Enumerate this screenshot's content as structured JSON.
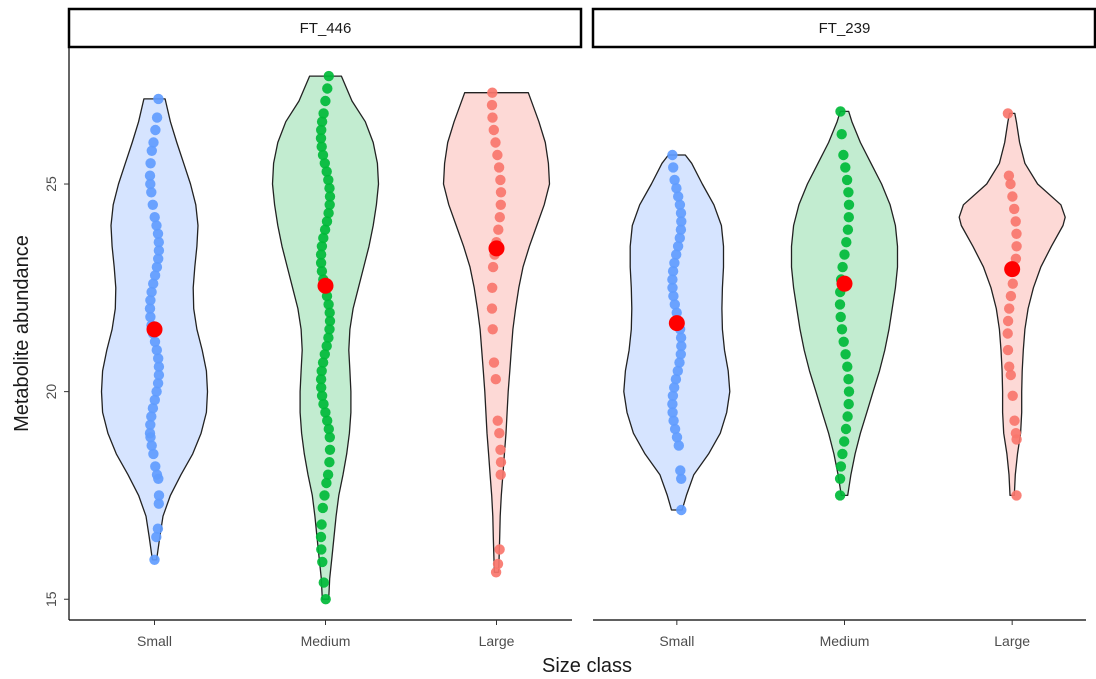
{
  "chart_data": {
    "type": "violin",
    "xlabel": "Size class",
    "ylabel": "Metabolite abundance",
    "ylim": [
      14.5,
      28.3
    ],
    "y_ticks": [
      15,
      20,
      25
    ],
    "categories": [
      "Small",
      "Medium",
      "Large"
    ],
    "grid": false,
    "legend": "none",
    "mean_marker_color": "#ff0000",
    "series_colors": {
      "Small": "#619cff",
      "Medium": "#00ba38",
      "Large": "#f8766d"
    },
    "fill_colors": {
      "Small": "#d6e4ff",
      "Medium": "#c2ecd0",
      "Large": "#fdd9d6"
    },
    "panels": [
      {
        "facet": "FT_446",
        "groups": [
          {
            "category": "Small",
            "mean": 21.5,
            "min": 15.95,
            "max": 27.05,
            "density": [
              [
                15.95,
                0.04
              ],
              [
                16.5,
                0.1
              ],
              [
                17.0,
                0.16
              ],
              [
                17.5,
                0.3
              ],
              [
                18.0,
                0.5
              ],
              [
                18.5,
                0.72
              ],
              [
                19.0,
                0.88
              ],
              [
                19.5,
                0.98
              ],
              [
                20.0,
                1.0
              ],
              [
                20.5,
                0.98
              ],
              [
                21.0,
                0.9
              ],
              [
                21.5,
                0.8
              ],
              [
                22.0,
                0.74
              ],
              [
                22.5,
                0.73
              ],
              [
                23.0,
                0.76
              ],
              [
                23.5,
                0.8
              ],
              [
                24.0,
                0.82
              ],
              [
                24.5,
                0.78
              ],
              [
                25.0,
                0.68
              ],
              [
                25.5,
                0.55
              ],
              [
                26.0,
                0.42
              ],
              [
                26.5,
                0.3
              ],
              [
                27.05,
                0.2
              ]
            ],
            "points": [
              15.95,
              16.5,
              16.7,
              17.3,
              17.5,
              17.9,
              18.0,
              18.2,
              18.5,
              18.7,
              18.9,
              19.0,
              19.2,
              19.4,
              19.6,
              19.8,
              20.0,
              20.2,
              20.4,
              20.6,
              20.8,
              21.0,
              21.2,
              21.4,
              21.6,
              21.8,
              22.0,
              22.2,
              22.4,
              22.6,
              22.8,
              23.0,
              23.2,
              23.4,
              23.6,
              23.8,
              24.0,
              24.2,
              24.5,
              24.8,
              25.0,
              25.2,
              25.5,
              25.8,
              26.0,
              26.3,
              26.6,
              27.05
            ]
          },
          {
            "category": "Medium",
            "mean": 22.55,
            "min": 15.0,
            "max": 27.6,
            "density": [
              [
                15.0,
                0.06
              ],
              [
                15.5,
                0.08
              ],
              [
                16.0,
                0.12
              ],
              [
                16.5,
                0.16
              ],
              [
                17.0,
                0.2
              ],
              [
                17.5,
                0.25
              ],
              [
                18.0,
                0.33
              ],
              [
                18.5,
                0.4
              ],
              [
                19.0,
                0.45
              ],
              [
                19.5,
                0.48
              ],
              [
                20.0,
                0.48
              ],
              [
                20.5,
                0.46
              ],
              [
                21.0,
                0.44
              ],
              [
                21.5,
                0.46
              ],
              [
                22.0,
                0.52
              ],
              [
                22.5,
                0.62
              ],
              [
                23.0,
                0.72
              ],
              [
                23.5,
                0.82
              ],
              [
                24.0,
                0.9
              ],
              [
                24.5,
                0.96
              ],
              [
                25.0,
                1.0
              ],
              [
                25.5,
                0.98
              ],
              [
                26.0,
                0.9
              ],
              [
                26.5,
                0.75
              ],
              [
                27.0,
                0.5
              ],
              [
                27.6,
                0.3
              ]
            ],
            "points": [
              15.0,
              15.4,
              15.9,
              16.2,
              16.5,
              16.8,
              17.2,
              17.5,
              17.8,
              18.0,
              18.3,
              18.6,
              18.9,
              19.1,
              19.3,
              19.5,
              19.7,
              19.9,
              20.1,
              20.3,
              20.5,
              20.7,
              20.9,
              21.1,
              21.3,
              21.5,
              21.7,
              21.9,
              22.1,
              22.3,
              22.5,
              22.7,
              22.9,
              23.1,
              23.3,
              23.5,
              23.7,
              23.9,
              24.1,
              24.3,
              24.5,
              24.7,
              24.9,
              25.1,
              25.3,
              25.5,
              25.7,
              25.9,
              26.1,
              26.3,
              26.5,
              26.7,
              27.0,
              27.3,
              27.6
            ]
          },
          {
            "category": "Large",
            "mean": 23.45,
            "min": 15.65,
            "max": 27.2,
            "density": [
              [
                15.65,
                0.04
              ],
              [
                16.0,
                0.05
              ],
              [
                16.5,
                0.06
              ],
              [
                17.0,
                0.07
              ],
              [
                17.5,
                0.09
              ],
              [
                18.0,
                0.12
              ],
              [
                18.5,
                0.15
              ],
              [
                19.0,
                0.18
              ],
              [
                19.5,
                0.2
              ],
              [
                20.0,
                0.22
              ],
              [
                20.5,
                0.25
              ],
              [
                21.0,
                0.28
              ],
              [
                21.5,
                0.31
              ],
              [
                22.0,
                0.36
              ],
              [
                22.5,
                0.42
              ],
              [
                23.0,
                0.5
              ],
              [
                23.5,
                0.62
              ],
              [
                24.0,
                0.76
              ],
              [
                24.5,
                0.9
              ],
              [
                25.0,
                1.0
              ],
              [
                25.5,
                0.98
              ],
              [
                26.0,
                0.92
              ],
              [
                26.5,
                0.8
              ],
              [
                27.2,
                0.6
              ]
            ],
            "points": [
              15.65,
              15.85,
              16.2,
              18.0,
              18.3,
              18.6,
              19.0,
              19.3,
              20.3,
              20.7,
              21.5,
              22.0,
              22.5,
              23.0,
              23.3,
              23.6,
              23.9,
              24.2,
              24.5,
              24.8,
              25.1,
              25.4,
              25.7,
              26.0,
              26.3,
              26.6,
              26.9,
              27.2
            ]
          }
        ]
      },
      {
        "facet": "FT_239",
        "groups": [
          {
            "category": "Small",
            "mean": 21.65,
            "min": 17.15,
            "max": 25.7,
            "density": [
              [
                17.15,
                0.1
              ],
              [
                17.5,
                0.18
              ],
              [
                18.0,
                0.32
              ],
              [
                18.5,
                0.6
              ],
              [
                19.0,
                0.82
              ],
              [
                19.5,
                0.94
              ],
              [
                20.0,
                1.0
              ],
              [
                20.5,
                0.97
              ],
              [
                21.0,
                0.9
              ],
              [
                21.5,
                0.86
              ],
              [
                22.0,
                0.85
              ],
              [
                22.5,
                0.86
              ],
              [
                23.0,
                0.88
              ],
              [
                23.5,
                0.88
              ],
              [
                24.0,
                0.84
              ],
              [
                24.5,
                0.7
              ],
              [
                25.0,
                0.48
              ],
              [
                25.5,
                0.28
              ],
              [
                25.7,
                0.16
              ]
            ],
            "points": [
              17.15,
              17.9,
              18.1,
              18.7,
              18.9,
              19.1,
              19.3,
              19.5,
              19.7,
              19.9,
              20.1,
              20.3,
              20.5,
              20.7,
              20.9,
              21.1,
              21.3,
              21.5,
              21.7,
              21.9,
              22.1,
              22.3,
              22.5,
              22.7,
              22.9,
              23.1,
              23.3,
              23.5,
              23.7,
              23.9,
              24.1,
              24.3,
              24.5,
              24.7,
              24.9,
              25.1,
              25.4,
              25.7
            ]
          },
          {
            "category": "Medium",
            "mean": 22.6,
            "min": 17.5,
            "max": 26.75,
            "density": [
              [
                17.5,
                0.06
              ],
              [
                18.0,
                0.12
              ],
              [
                18.5,
                0.2
              ],
              [
                19.0,
                0.3
              ],
              [
                19.5,
                0.42
              ],
              [
                20.0,
                0.54
              ],
              [
                20.5,
                0.66
              ],
              [
                21.0,
                0.76
              ],
              [
                21.5,
                0.84
              ],
              [
                22.0,
                0.9
              ],
              [
                22.5,
                0.96
              ],
              [
                23.0,
                1.0
              ],
              [
                23.5,
                1.0
              ],
              [
                24.0,
                0.96
              ],
              [
                24.5,
                0.86
              ],
              [
                25.0,
                0.7
              ],
              [
                25.5,
                0.5
              ],
              [
                26.0,
                0.3
              ],
              [
                26.5,
                0.14
              ],
              [
                26.75,
                0.08
              ]
            ],
            "points": [
              17.5,
              17.9,
              18.2,
              18.5,
              18.8,
              19.1,
              19.4,
              19.7,
              20.0,
              20.3,
              20.6,
              20.9,
              21.2,
              21.5,
              21.8,
              22.1,
              22.4,
              22.7,
              23.0,
              23.3,
              23.6,
              23.9,
              24.2,
              24.5,
              24.8,
              25.1,
              25.4,
              25.7,
              26.2,
              26.75
            ]
          },
          {
            "category": "Large",
            "mean": 22.95,
            "min": 17.5,
            "max": 26.7,
            "density": [
              [
                17.5,
                0.04
              ],
              [
                18.0,
                0.06
              ],
              [
                18.5,
                0.1
              ],
              [
                19.0,
                0.16
              ],
              [
                19.5,
                0.18
              ],
              [
                20.0,
                0.18
              ],
              [
                20.5,
                0.19
              ],
              [
                21.0,
                0.21
              ],
              [
                21.5,
                0.24
              ],
              [
                22.0,
                0.3
              ],
              [
                22.5,
                0.4
              ],
              [
                23.0,
                0.54
              ],
              [
                23.5,
                0.74
              ],
              [
                24.0,
                0.96
              ],
              [
                24.2,
                1.0
              ],
              [
                24.5,
                0.92
              ],
              [
                25.0,
                0.48
              ],
              [
                25.5,
                0.24
              ],
              [
                26.0,
                0.14
              ],
              [
                26.5,
                0.08
              ],
              [
                26.7,
                0.05
              ]
            ],
            "points": [
              17.5,
              18.85,
              19.0,
              19.3,
              19.9,
              20.4,
              20.6,
              21.0,
              21.4,
              21.7,
              22.0,
              22.3,
              22.6,
              22.9,
              23.2,
              23.5,
              23.8,
              24.1,
              24.4,
              24.7,
              25.0,
              25.2,
              26.7
            ]
          }
        ]
      }
    ]
  }
}
